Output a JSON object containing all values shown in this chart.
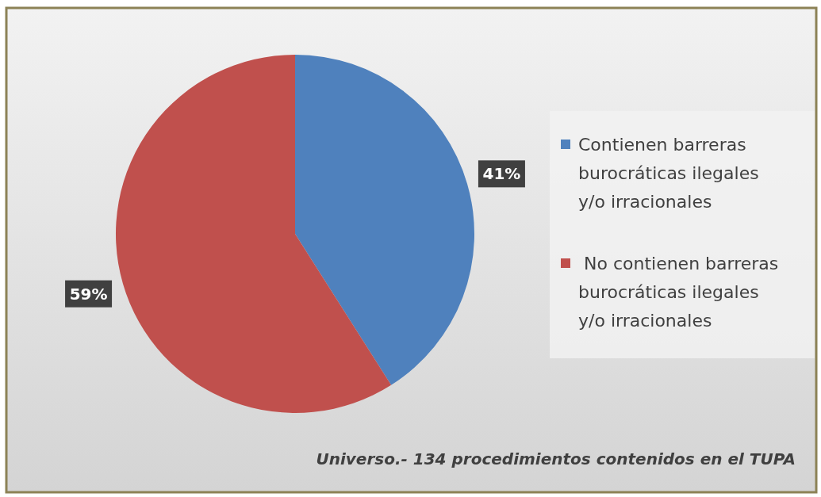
{
  "chart_data": {
    "type": "pie",
    "categories": [
      "Contienen barreras burocráticas ilegales y/o irracionales",
      " No contienen barreras burocráticas ilegales y/o irracionales"
    ],
    "values": [
      41,
      59
    ],
    "colors": [
      "#4f81bd",
      "#c0504d"
    ],
    "value_labels": [
      "41%",
      "59%"
    ],
    "legend": "right",
    "annotations": [
      "Universo.- 134 procedimientos contenidos en el TUPA"
    ]
  }
}
